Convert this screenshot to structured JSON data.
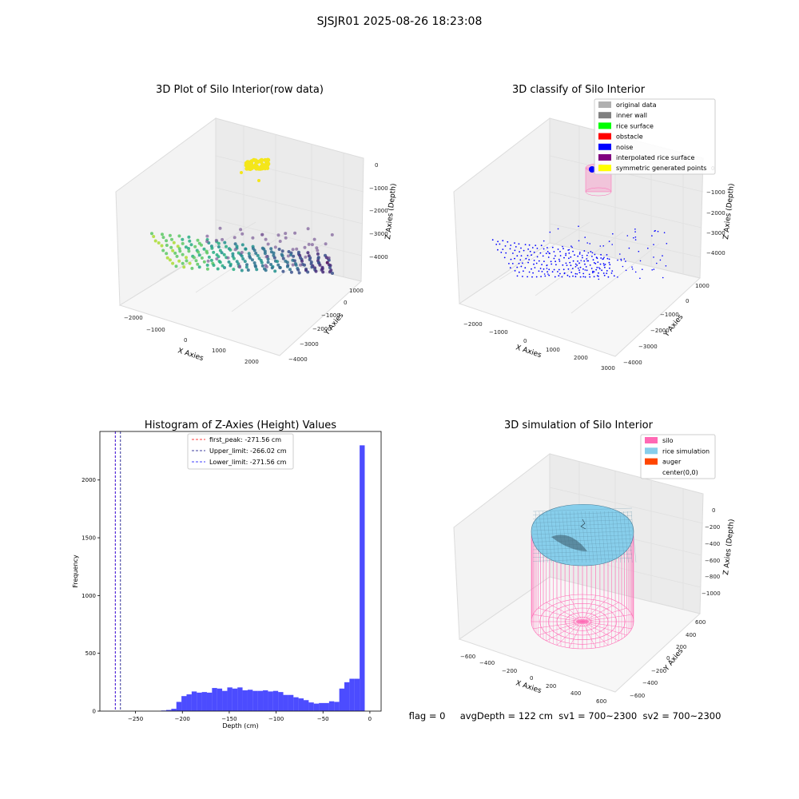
{
  "figure": {
    "suptitle": "SJSJR01 2025-08-26 18:23:08",
    "status_line": "flag = 0     avgDepth = 122 cm  sv1 = 700~2300  sv2 = 700~2300"
  },
  "chart_data": [
    {
      "type": "scatter",
      "title": "3D Plot of Silo Interior(row data)",
      "xlabel": "X Axies",
      "ylabel": "Y Axies",
      "zlabel": "Z Axies (Depth)",
      "xticks": [
        "−2000",
        "−1000",
        "0",
        "1000",
        "2000"
      ],
      "yticks": [
        "1000",
        "0",
        "−1000",
        "−2000",
        "−3000",
        "−4000"
      ],
      "zticks": [
        "0",
        "−1000",
        "−2000",
        "−3000",
        "−4000"
      ],
      "series": [
        {
          "values": "yellow cluster near top, around X≈-400..100, Y≈0..1000, Z≈0..-400"
        },
        {
          "values": "bowl-shaped point cloud, X -2000..2000, Y -4000..1000, Z -3000..-4500, viridis colormap"
        }
      ]
    },
    {
      "type": "scatter",
      "title": "3D classify of Silo Interior",
      "xlabel": "X Axies",
      "ylabel": "Y Axies",
      "zlabel": "Z Axies (Depth)",
      "xticks": [
        "−2000",
        "−1000",
        "0",
        "1000",
        "2000",
        "3000"
      ],
      "yticks": [
        "1000",
        "0",
        "−1000",
        "−2000",
        "−3000",
        "−4000"
      ],
      "zticks": [
        "0",
        "−1000",
        "−2000",
        "−3000",
        "−4000"
      ],
      "legend_position": "top-right",
      "legend": [
        {
          "label": "original data",
          "color": "#b0b0b0"
        },
        {
          "label": "inner wall",
          "color": "#808080"
        },
        {
          "label": "rice surface",
          "color": "#00ff00"
        },
        {
          "label": "obstacle",
          "color": "#ff0000"
        },
        {
          "label": "noise",
          "color": "#0000ff"
        },
        {
          "label": "interpolated rice surface",
          "color": "#800080"
        },
        {
          "label": "symmetric generated points",
          "color": "#ffff00"
        }
      ]
    },
    {
      "type": "bar",
      "title": "Histogram of Z-Axies (Height) Values",
      "xlabel": "Depth (cm)",
      "ylabel": "Frequency",
      "xlim": [
        -288,
        12
      ],
      "ylim": [
        0,
        2420
      ],
      "xticks": [
        {
          "v": -250,
          "l": "−250"
        },
        {
          "v": -200,
          "l": "−200"
        },
        {
          "v": -150,
          "l": "−150"
        },
        {
          "v": -100,
          "l": "−100"
        },
        {
          "v": -50,
          "l": "−50"
        },
        {
          "v": 0,
          "l": "0"
        }
      ],
      "yticks": [
        {
          "v": 0,
          "l": "0"
        },
        {
          "v": 500,
          "l": "500"
        },
        {
          "v": 1000,
          "l": "1000"
        },
        {
          "v": 1500,
          "l": "1500"
        },
        {
          "v": 2000,
          "l": "2000"
        }
      ],
      "bin_start": -271.56,
      "bin_width": 5.43,
      "values": [
        0,
        0,
        0,
        0,
        0,
        0,
        0,
        0,
        0,
        5,
        10,
        20,
        80,
        130,
        145,
        170,
        160,
        165,
        160,
        200,
        195,
        175,
        205,
        195,
        205,
        180,
        185,
        175,
        175,
        180,
        170,
        175,
        165,
        140,
        140,
        120,
        110,
        95,
        75,
        65,
        70,
        70,
        85,
        80,
        195,
        250,
        280,
        280,
        2300
      ],
      "bar_color": "#0000ff",
      "bar_alpha": 0.7,
      "legend_position": "top-center",
      "vlines": [
        {
          "label": "first_peak: -271.56 cm",
          "x": -271.56,
          "color": "#ff0000"
        },
        {
          "label": "Upper_limit: -266.02 cm",
          "x": -266.02,
          "color": "#000080"
        },
        {
          "label": "Lower_limit: -271.56 cm",
          "x": -271.56,
          "color": "#0000ff"
        }
      ]
    },
    {
      "type": "surface",
      "title": "3D simulation of Silo Interior",
      "xlabel": "X Axies",
      "ylabel": "Y Axies",
      "zlabel": "Z Axies (Depth)",
      "xticks": [
        "−600",
        "−400",
        "−200",
        "0",
        "200",
        "400",
        "600"
      ],
      "yticks": [
        "600",
        "400",
        "200",
        "0",
        "−200",
        "−400",
        "−600"
      ],
      "zticks": [
        "0",
        "−200",
        "−400",
        "−600",
        "−800",
        "−1000"
      ],
      "legend_position": "top-right",
      "legend": [
        {
          "label": "silo",
          "color": "#ff69b4"
        },
        {
          "label": "rice simulation",
          "color": "#87ceeb"
        },
        {
          "label": "auger",
          "color": "#ff4500"
        },
        {
          "label": "center(0,0)",
          "color": "#ffffff"
        }
      ]
    }
  ]
}
